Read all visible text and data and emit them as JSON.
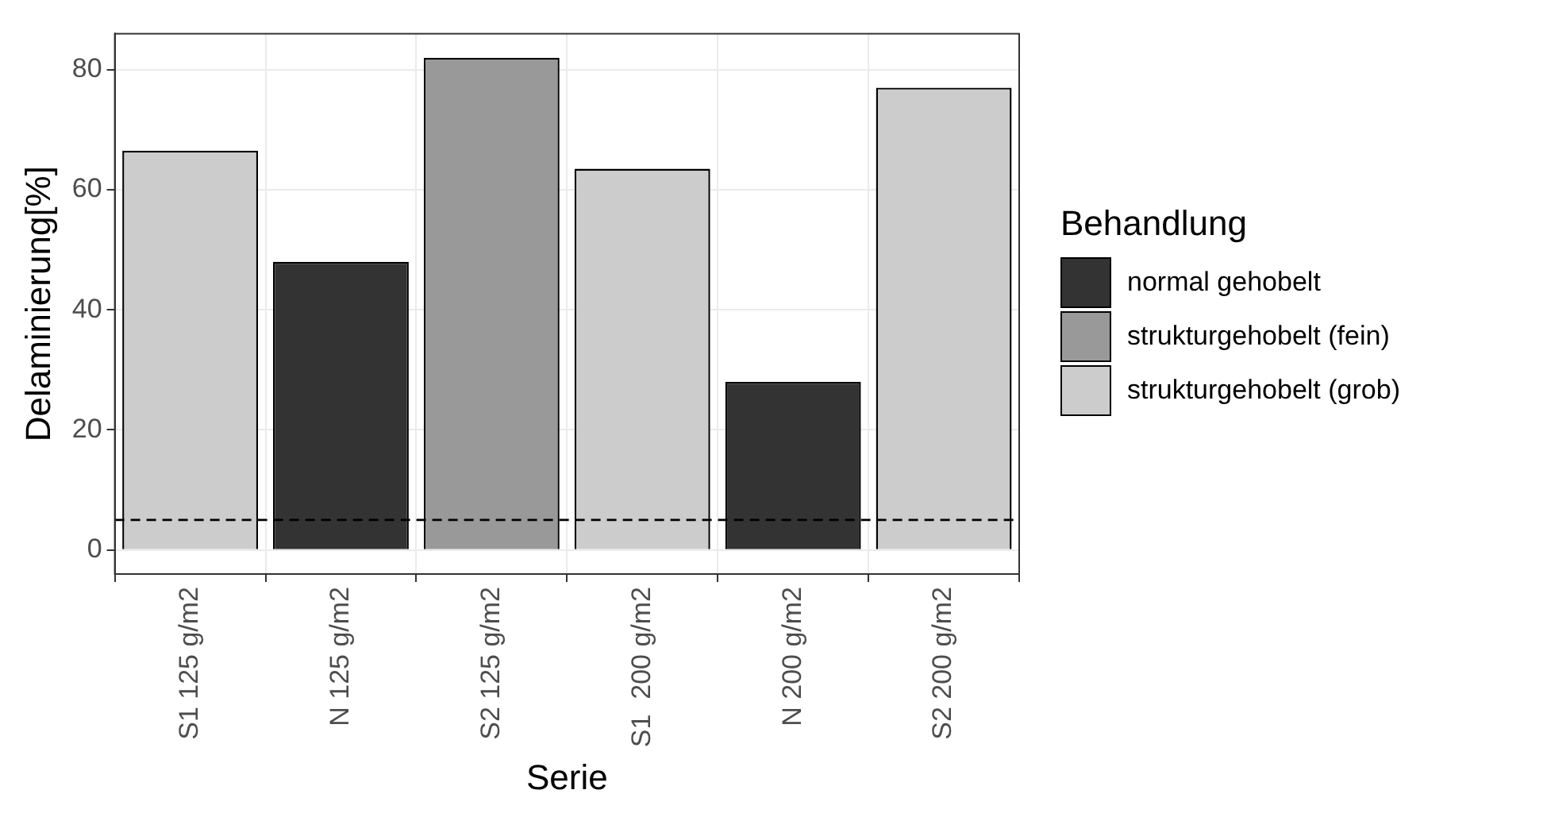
{
  "chart_data": {
    "type": "bar",
    "xlabel": "Serie",
    "ylabel": "Delaminierung[%]",
    "legend_title": "Behandlung",
    "categories": [
      "S1 125 g/m2",
      "N 125 g/m2",
      "S2 125 g/m2",
      "S1  200 g/m2",
      "N 200 g/m2",
      "S2 200 g/m2"
    ],
    "series": [
      {
        "name": "normal gehobelt",
        "color": "#333333",
        "values": [
          null,
          48,
          null,
          null,
          28,
          null
        ]
      },
      {
        "name": "strukturgehobelt (fein)",
        "color": "#999999",
        "values": [
          null,
          null,
          82,
          null,
          null,
          null
        ]
      },
      {
        "name": "strukturgehobelt (grob)",
        "color": "#cccccc",
        "values": [
          66.5,
          null,
          null,
          63.5,
          null,
          77
        ]
      }
    ],
    "stacked": true,
    "ylim": [
      -4,
      86
    ],
    "yticks": [
      0,
      20,
      40,
      60,
      80
    ],
    "grid": true,
    "legend": "right",
    "ref_lines": [
      {
        "axis": "y",
        "value": 5,
        "line_style": "dashed",
        "color": "#000000"
      }
    ]
  }
}
